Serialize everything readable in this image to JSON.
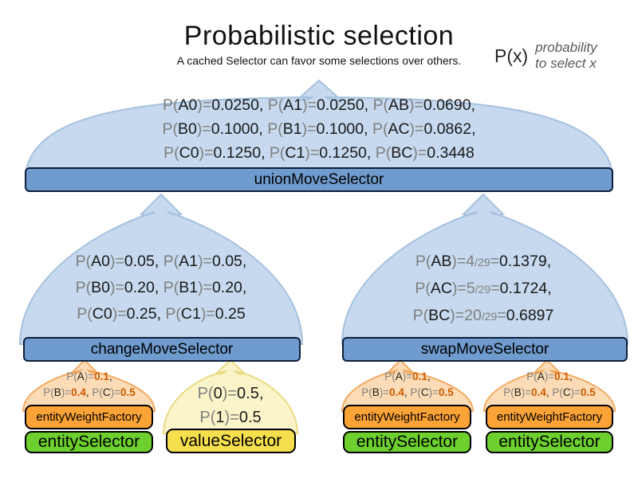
{
  "header": {
    "title": "Probabilistic selection",
    "subtitle": "A cached Selector can favor some selections over others."
  },
  "legend": {
    "symbol": "P(x)",
    "description_line1": "probability",
    "description_line2": "to select x"
  },
  "union": {
    "label": "unionMoveSelector",
    "prob_lines": [
      [
        [
          "g",
          "P("
        ],
        [
          "k",
          "A0"
        ],
        [
          "g",
          ")="
        ],
        [
          "k",
          "0.0250, "
        ],
        [
          "g",
          "P("
        ],
        [
          "k",
          "A1"
        ],
        [
          "g",
          ")="
        ],
        [
          "k",
          "0.0250, "
        ],
        [
          "g",
          "P("
        ],
        [
          "k",
          "AB"
        ],
        [
          "g",
          ")="
        ],
        [
          "k",
          "0.0690,"
        ]
      ],
      [
        [
          "g",
          "P("
        ],
        [
          "k",
          "B0"
        ],
        [
          "g",
          ")="
        ],
        [
          "k",
          "0.1000, "
        ],
        [
          "g",
          "P("
        ],
        [
          "k",
          "B1"
        ],
        [
          "g",
          ")="
        ],
        [
          "k",
          "0.1000, "
        ],
        [
          "g",
          "P("
        ],
        [
          "k",
          "AC"
        ],
        [
          "g",
          ")="
        ],
        [
          "k",
          "0.0862,"
        ]
      ],
      [
        [
          "g",
          "P("
        ],
        [
          "k",
          "C0"
        ],
        [
          "g",
          ")="
        ],
        [
          "k",
          "0.1250, "
        ],
        [
          "g",
          "P("
        ],
        [
          "k",
          "C1"
        ],
        [
          "g",
          ")="
        ],
        [
          "k",
          "0.1250, "
        ],
        [
          "g",
          "P("
        ],
        [
          "k",
          "BC"
        ],
        [
          "g",
          ")="
        ],
        [
          "k",
          "0.3448"
        ]
      ]
    ]
  },
  "change": {
    "label": "changeMoveSelector",
    "prob_lines": [
      [
        [
          "g",
          "P("
        ],
        [
          "k",
          "A0"
        ],
        [
          "g",
          ")="
        ],
        [
          "k",
          "0.05, "
        ],
        [
          "g",
          "P("
        ],
        [
          "k",
          "A1"
        ],
        [
          "g",
          ")="
        ],
        [
          "k",
          "0.05,"
        ]
      ],
      [
        [
          "g",
          "P("
        ],
        [
          "k",
          "B0"
        ],
        [
          "g",
          ")="
        ],
        [
          "k",
          "0.20, "
        ],
        [
          "g",
          "P("
        ],
        [
          "k",
          "B1"
        ],
        [
          "g",
          ")="
        ],
        [
          "k",
          "0.20,"
        ]
      ],
      [
        [
          "g",
          "P("
        ],
        [
          "k",
          "C0"
        ],
        [
          "g",
          ")="
        ],
        [
          "k",
          "0.25, "
        ],
        [
          "g",
          "P("
        ],
        [
          "k",
          "C1"
        ],
        [
          "g",
          ")="
        ],
        [
          "k",
          "0.25"
        ]
      ]
    ]
  },
  "swap": {
    "label": "swapMoveSelector",
    "prob_lines": [
      [
        [
          "g",
          "P("
        ],
        [
          "k",
          "AB"
        ],
        [
          "g",
          ")="
        ],
        [
          "g",
          "4"
        ],
        [
          "f",
          "/29"
        ],
        [
          "g",
          "="
        ],
        [
          "k",
          "0.1379,"
        ]
      ],
      [
        [
          "g",
          "P("
        ],
        [
          "k",
          "AC"
        ],
        [
          "g",
          ")="
        ],
        [
          "g",
          "5"
        ],
        [
          "f",
          "/29"
        ],
        [
          "g",
          "="
        ],
        [
          "k",
          "0.1724,"
        ]
      ],
      [
        [
          "g",
          "P("
        ],
        [
          "k",
          "BC"
        ],
        [
          "g",
          ")="
        ],
        [
          "g",
          "20"
        ],
        [
          "f",
          "/29"
        ],
        [
          "g",
          "="
        ],
        [
          "k",
          "0.6897"
        ]
      ]
    ]
  },
  "entity_columns": [
    {
      "factory_label": "entityWeightFactory",
      "selector_label": "entitySelector",
      "weight_lines": [
        [
          [
            "g",
            "P("
          ],
          [
            "k",
            "A"
          ],
          [
            "g",
            ")="
          ],
          [
            "o",
            "0.1"
          ],
          [
            "k",
            ","
          ]
        ],
        [
          [
            "g",
            "P("
          ],
          [
            "k",
            "B"
          ],
          [
            "g",
            ")="
          ],
          [
            "o",
            "0.4"
          ],
          [
            "k",
            ", "
          ],
          [
            "g",
            "P("
          ],
          [
            "k",
            "C"
          ],
          [
            "g",
            ")="
          ],
          [
            "o",
            "0.5"
          ]
        ]
      ]
    },
    {
      "factory_label": "entityWeightFactory",
      "selector_label": "entitySelector",
      "weight_lines": [
        [
          [
            "g",
            "P("
          ],
          [
            "k",
            "A"
          ],
          [
            "g",
            ")="
          ],
          [
            "o",
            "0.1"
          ],
          [
            "k",
            ","
          ]
        ],
        [
          [
            "g",
            "P("
          ],
          [
            "k",
            "B"
          ],
          [
            "g",
            ")="
          ],
          [
            "o",
            "0.4"
          ],
          [
            "k",
            ", "
          ],
          [
            "g",
            "P("
          ],
          [
            "k",
            "C"
          ],
          [
            "g",
            ")="
          ],
          [
            "o",
            "0.5"
          ]
        ]
      ]
    },
    {
      "factory_label": "entityWeightFactory",
      "selector_label": "entitySelector",
      "weight_lines": [
        [
          [
            "g",
            "P("
          ],
          [
            "k",
            "A"
          ],
          [
            "g",
            ")="
          ],
          [
            "o",
            "0.1"
          ],
          [
            "k",
            ","
          ]
        ],
        [
          [
            "g",
            "P("
          ],
          [
            "k",
            "B"
          ],
          [
            "g",
            ")="
          ],
          [
            "o",
            "0.4"
          ],
          [
            "k",
            ", "
          ],
          [
            "g",
            "P("
          ],
          [
            "k",
            "C"
          ],
          [
            "g",
            ")="
          ],
          [
            "o",
            "0.5"
          ]
        ]
      ]
    }
  ],
  "value_column": {
    "selector_label": "valueSelector",
    "prob_lines": [
      [
        [
          "g",
          "P("
        ],
        [
          "k",
          "0"
        ],
        [
          "g",
          ")="
        ],
        [
          "k",
          "0.5,"
        ]
      ],
      [
        [
          "g",
          "P("
        ],
        [
          "k",
          "1"
        ],
        [
          "g",
          ")="
        ],
        [
          "k",
          "0.5"
        ]
      ]
    ]
  },
  "colors": {
    "dome_blue_fill": "#c6d9ee",
    "dome_blue_stroke": "#a6c1de",
    "dome_orange_fill": "#fcdcb7",
    "dome_orange_stroke": "#f3ab62",
    "dome_yellow_fill": "#fbf4c8",
    "dome_yellow_stroke": "#e9da85",
    "bar_fill": "#6f9bce",
    "bar_border": "#0d1f3c",
    "factory_fill": "#fca337",
    "entity_fill": "#6dd02e",
    "value_fill": "#f5df4d",
    "gray_text": "#7f7f7f",
    "black_text": "#1a1a1a",
    "orange_value": "#cc5a00"
  }
}
